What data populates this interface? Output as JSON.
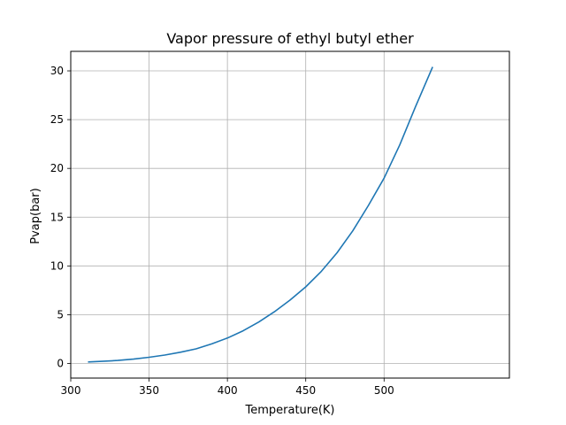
{
  "chart_data": {
    "type": "line",
    "title": "Vapor pressure of ethyl butyl ether",
    "xlabel": "Temperature(K)",
    "ylabel": "Pvap(bar)",
    "xlim": [
      300,
      580
    ],
    "ylim": [
      -1.5,
      32
    ],
    "xticks": [
      300,
      350,
      400,
      450,
      500
    ],
    "yticks": [
      0,
      5,
      10,
      15,
      20,
      25,
      30
    ],
    "grid": true,
    "line_color": "#1f77b4",
    "series": [
      {
        "x": [
          311,
          320,
          330,
          340,
          350,
          360,
          370,
          380,
          390,
          400,
          410,
          420,
          430,
          440,
          450,
          460,
          470,
          480,
          490,
          500,
          510,
          520,
          531
        ],
        "y": [
          0.15,
          0.22,
          0.31,
          0.44,
          0.63,
          0.86,
          1.15,
          1.5,
          2.0,
          2.6,
          3.35,
          4.25,
          5.3,
          6.5,
          7.85,
          9.45,
          11.35,
          13.6,
          16.2,
          19.0,
          22.4,
          26.3,
          30.4
        ]
      }
    ]
  }
}
